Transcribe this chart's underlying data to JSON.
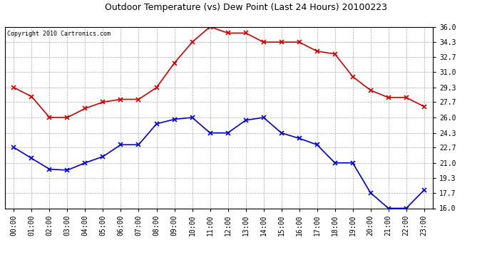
{
  "title": "Outdoor Temperature (vs) Dew Point (Last 24 Hours) 20100223",
  "copyright": "Copyright 2010 Cartronics.com",
  "x_labels": [
    "00:00",
    "01:00",
    "02:00",
    "03:00",
    "04:00",
    "05:00",
    "06:00",
    "07:00",
    "08:00",
    "09:00",
    "10:00",
    "11:00",
    "12:00",
    "13:00",
    "14:00",
    "15:00",
    "16:00",
    "17:00",
    "18:00",
    "19:00",
    "20:00",
    "21:00",
    "22:00",
    "23:00"
  ],
  "temp_red": [
    29.3,
    28.3,
    26.0,
    26.0,
    27.0,
    27.7,
    28.0,
    28.0,
    29.3,
    32.0,
    34.3,
    36.0,
    35.3,
    35.3,
    34.3,
    34.3,
    34.3,
    33.3,
    33.0,
    30.5,
    29.0,
    28.2,
    28.2,
    27.2
  ],
  "dew_blue": [
    22.7,
    21.5,
    20.3,
    20.2,
    21.0,
    21.7,
    23.0,
    23.0,
    25.3,
    25.8,
    26.0,
    24.3,
    24.3,
    25.7,
    26.0,
    24.3,
    23.7,
    23.0,
    21.0,
    21.0,
    17.7,
    16.0,
    16.0,
    18.0
  ],
  "ylim": [
    16.0,
    36.0
  ],
  "yticks": [
    16.0,
    17.7,
    19.3,
    21.0,
    22.7,
    24.3,
    26.0,
    27.7,
    29.3,
    31.0,
    32.7,
    34.3,
    36.0
  ],
  "red_color": "#cc0000",
  "blue_color": "#0000cc",
  "bg_color": "#ffffff",
  "plot_bg_color": "#ffffff",
  "grid_color": "#aaaaaa",
  "title_color": "#000000",
  "marker": "x",
  "linewidth": 1.2,
  "markersize": 4,
  "title_fontsize": 9,
  "tick_fontsize": 7,
  "copyright_fontsize": 6
}
